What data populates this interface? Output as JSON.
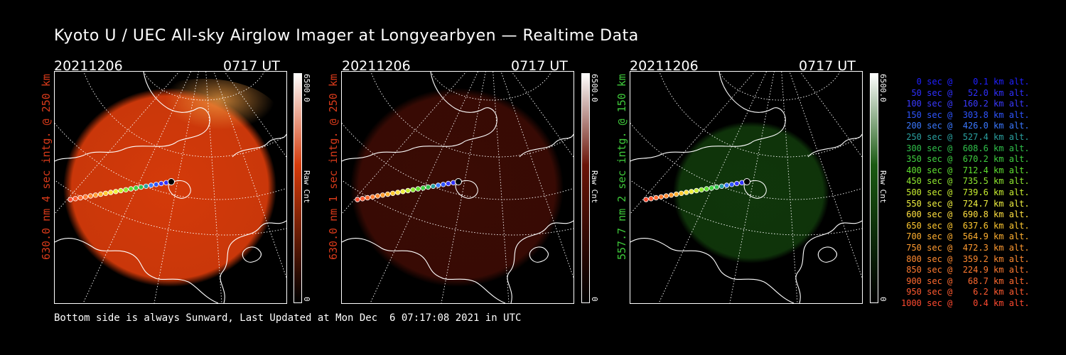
{
  "title": "Kyoto U / UEC All-sky Airglow Imager at Longyearbyen — Realtime Data",
  "panels": [
    {
      "date": "20211206",
      "time": "0717 UT",
      "side_label": "630.0 nm 4 sec intg. @ 250 km",
      "label_color": "#d83a1a",
      "cbar_max": "6500.0",
      "cbar_min": "0",
      "cbar_unit": "Raw Cnt",
      "glow_color": "#d43a0a",
      "glow_intensity": 1.0
    },
    {
      "date": "20211206",
      "time": "0717 UT",
      "side_label": "630.0 nm 1 sec intg. @ 250 km",
      "label_color": "#d83a1a",
      "cbar_max": "6500.0",
      "cbar_min": "0",
      "cbar_unit": "Raw Cnt",
      "glow_color": "#6a1408",
      "glow_intensity": 0.55
    },
    {
      "date": "20211206",
      "time": "0717 UT",
      "side_label": "557.7 nm 2 sec intg. @ 150 km",
      "label_color": "#3ec93a",
      "cbar_max": "6500.0",
      "cbar_min": "0",
      "cbar_unit": "Raw Cnt",
      "glow_color": "#1a5a12",
      "glow_intensity": 0.6
    }
  ],
  "legend": [
    {
      "text": "   0 sec @    0.1 km alt.",
      "color": "#2020ff"
    },
    {
      "text": "  50 sec @   52.0 km alt.",
      "color": "#3030ff"
    },
    {
      "text": " 100 sec @  160.2 km alt.",
      "color": "#3a3aff"
    },
    {
      "text": " 150 sec @  303.8 km alt.",
      "color": "#2e55ff"
    },
    {
      "text": " 200 sec @  426.0 km alt.",
      "color": "#3a78ff"
    },
    {
      "text": " 250 sec @  527.4 km alt.",
      "color": "#2aa0a0"
    },
    {
      "text": " 300 sec @  608.6 km alt.",
      "color": "#2fc04a"
    },
    {
      "text": " 350 sec @  670.2 km alt.",
      "color": "#40d040"
    },
    {
      "text": " 400 sec @  712.4 km alt.",
      "color": "#60e030"
    },
    {
      "text": " 450 sec @  735.5 km alt.",
      "color": "#90e830"
    },
    {
      "text": " 500 sec @  739.6 km alt.",
      "color": "#c8ee30"
    },
    {
      "text": " 550 sec @  724.7 km alt.",
      "color": "#f0f040"
    },
    {
      "text": " 600 sec @  690.8 km alt.",
      "color": "#ffe040"
    },
    {
      "text": " 650 sec @  637.6 km alt.",
      "color": "#ffc830"
    },
    {
      "text": " 700 sec @  564.9 km alt.",
      "color": "#ffb030"
    },
    {
      "text": " 750 sec @  472.3 km alt.",
      "color": "#ff9a30"
    },
    {
      "text": " 800 sec @  359.2 km alt.",
      "color": "#ff8a30"
    },
    {
      "text": " 850 sec @  224.9 km alt.",
      "color": "#ff7a30"
    },
    {
      "text": " 900 sec @   68.7 km alt.",
      "color": "#ff6a30"
    },
    {
      "text": " 950 sec @    6.2 km alt.",
      "color": "#ff5a30"
    },
    {
      "text": "1000 sec @    0.4 km alt.",
      "color": "#ff4a30"
    }
  ],
  "footer": "Bottom side is always Sunward, Last Updated at Mon Dec  6 07:17:08 2021 in UTC"
}
